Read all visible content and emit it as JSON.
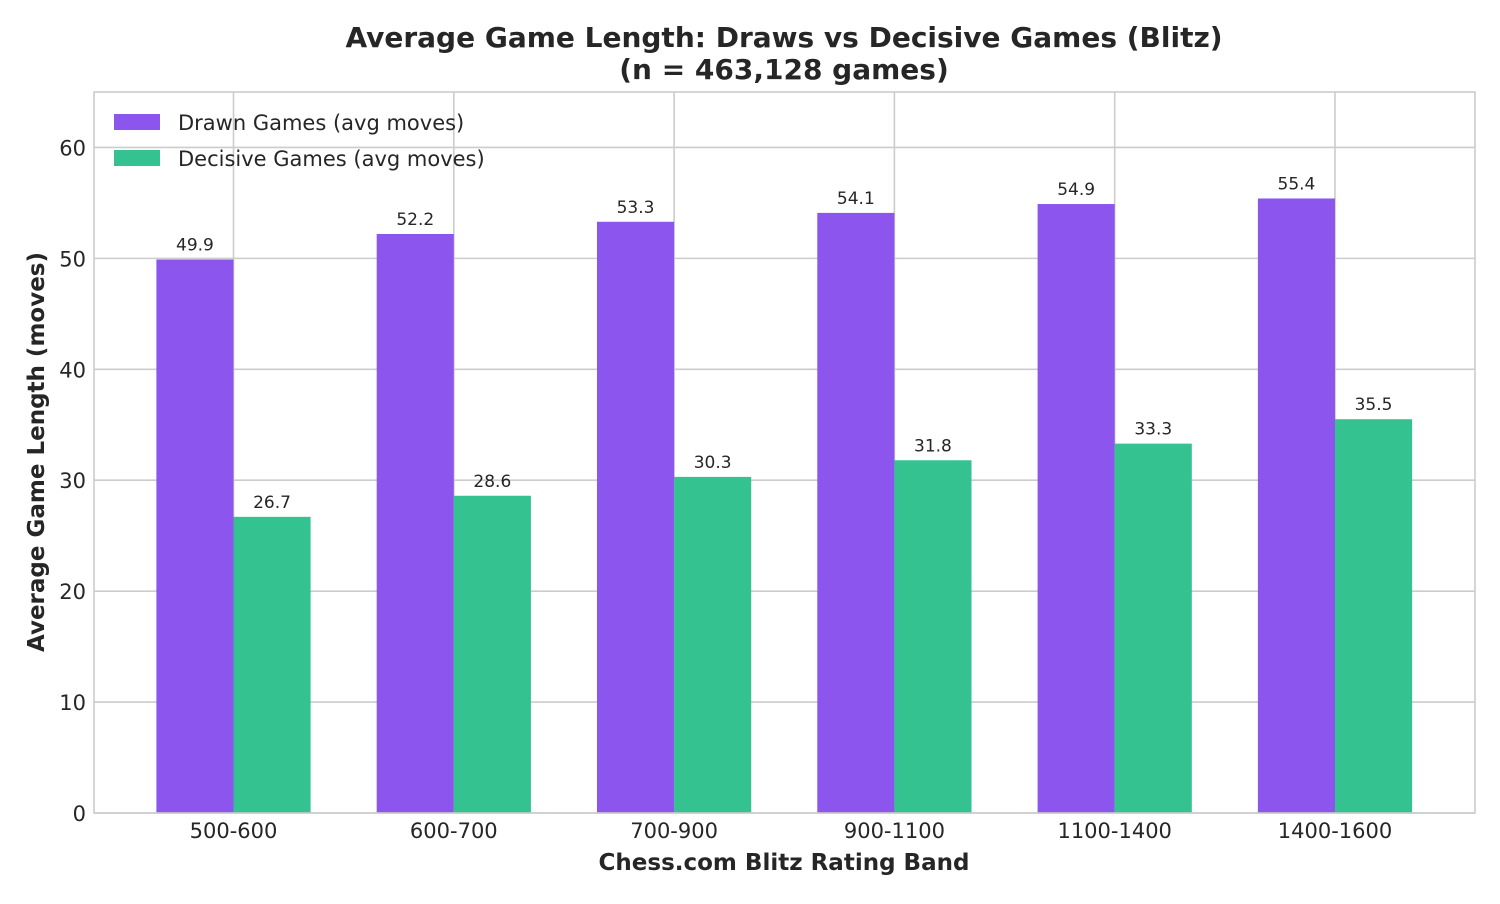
{
  "chart_data": {
    "type": "bar",
    "title": "Average Game Length: Draws vs Decisive Games (Blitz)",
    "subtitle": "(n = 463,128 games)",
    "xlabel": "Chess.com Blitz Rating Band",
    "ylabel": "Average Game Length (moves)",
    "categories": [
      "500-600",
      "600-700",
      "700-900",
      "900-1100",
      "1100-1400",
      "1400-1600"
    ],
    "ylim": [
      0,
      65
    ],
    "yticks": [
      0,
      10,
      20,
      30,
      40,
      50,
      60
    ],
    "grid": true,
    "legend_position": "top-left",
    "series": [
      {
        "name": "Drawn Games (avg moves)",
        "color": "#8b55ee",
        "values": [
          49.9,
          52.2,
          53.3,
          54.1,
          54.9,
          55.4
        ],
        "labels": [
          "49.9",
          "52.2",
          "53.3",
          "54.1",
          "54.9",
          "55.4"
        ]
      },
      {
        "name": "Decisive Games (avg moves)",
        "color": "#33c290",
        "values": [
          26.7,
          28.6,
          30.3,
          31.8,
          33.3,
          35.5
        ],
        "labels": [
          "26.7",
          "28.6",
          "30.3",
          "31.8",
          "33.3",
          "35.5"
        ]
      }
    ]
  }
}
